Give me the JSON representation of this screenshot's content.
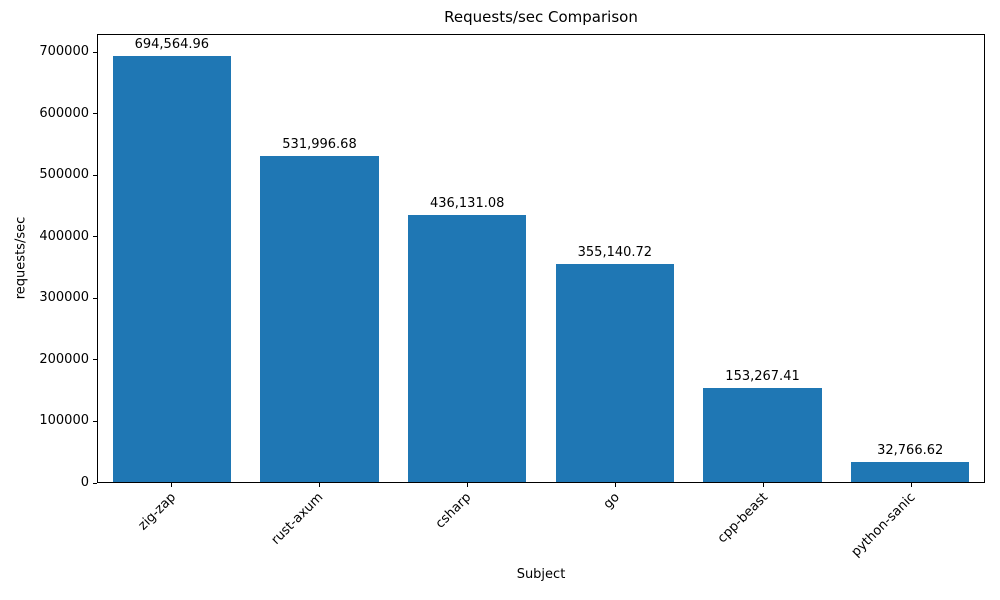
{
  "chart_data": {
    "type": "bar",
    "title": "Requests/sec Comparison",
    "xlabel": "Subject",
    "ylabel": "requests/sec",
    "categories": [
      "zig-zap",
      "rust-axum",
      "csharp",
      "go",
      "cpp-beast",
      "python-sanic"
    ],
    "values": [
      694564.96,
      531996.68,
      436131.08,
      355140.72,
      153267.41,
      32766.62
    ],
    "value_labels": [
      "694,564.96",
      "531,996.68",
      "436,131.08",
      "355,140.72",
      "153,267.41",
      "32,766.62"
    ],
    "ylim": [
      0,
      729293
    ],
    "yticks": [
      0,
      100000,
      200000,
      300000,
      400000,
      500000,
      600000,
      700000
    ],
    "ytick_labels": [
      "0",
      "100000",
      "200000",
      "300000",
      "400000",
      "500000",
      "600000",
      "700000"
    ],
    "bar_color": "#1f77b4",
    "text_color": "#000000",
    "grid": false,
    "legend_position": "none",
    "x_tick_rotation": 45
  }
}
